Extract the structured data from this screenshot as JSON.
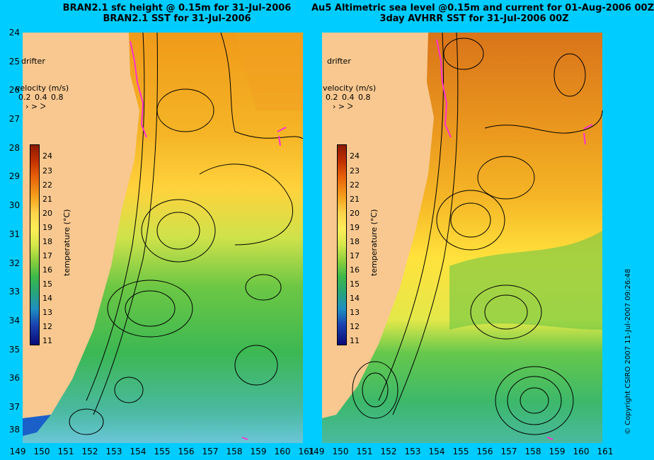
{
  "left_panel": {
    "title_line1": "BRAN2.1 sfc height @ 0.15m for 31-Jul-2006",
    "title_line2": "BRAN2.1 SST for 31-Jul-2006",
    "drifter_label": "drifter",
    "velocity_label": "velocity (m/s)",
    "velocity_values": "0.2 0.4 0.8",
    "colorbar_label": "temperature (°C)"
  },
  "right_panel": {
    "title_line1": "Au5 Altimetric sea level  @0.15m and current for 01-Aug-2006 00Z",
    "title_line2": "3day AVHRR SST for 31-Jul-2006 00Z",
    "drifter_label": "drifter",
    "velocity_label": "velocity (m/s)",
    "velocity_values": "0.2 0.4 0.8",
    "colorbar_label": "temperature (°C)"
  },
  "velocity_arrow_glyphs": "› > ᐳ",
  "y_axis_labels": [
    "24",
    "25",
    "26",
    "27",
    "28",
    "29",
    "30",
    "31",
    "32",
    "33",
    "34",
    "35",
    "36",
    "37",
    "38"
  ],
  "x_axis_labels": [
    "149",
    "150",
    "151",
    "152",
    "153",
    "154",
    "155",
    "156",
    "157",
    "158",
    "159",
    "160",
    "161"
  ],
  "colorbar_ticks": [
    "24",
    "23",
    "22",
    "21",
    "20",
    "19",
    "18",
    "17",
    "16",
    "15",
    "14",
    "13",
    "12",
    "11"
  ],
  "copyright": "© Copyright CSIRO 2007   11-Jul-2007 09:26:48",
  "colors": {
    "background": "#00ccff",
    "land": "#f8c890",
    "drifter_track": "#ff33cc"
  }
}
